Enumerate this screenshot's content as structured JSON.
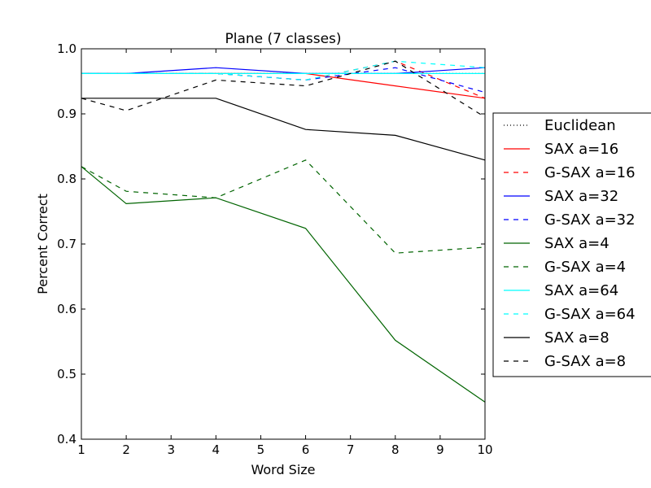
{
  "chart_data": {
    "type": "line",
    "title": "Plane (7 classes)",
    "xlabel": "Word Size",
    "ylabel": "Percent Correct",
    "xlim": [
      1,
      10
    ],
    "ylim": [
      0.4,
      1.0
    ],
    "xticks": [
      "1",
      "2",
      "3",
      "4",
      "5",
      "6",
      "7",
      "8",
      "9",
      "10"
    ],
    "yticks": [
      "0.4",
      "0.5",
      "0.6",
      "0.7",
      "0.8",
      "0.9",
      "1.0"
    ],
    "grid": false,
    "legend_position": "right",
    "x": [
      1,
      2,
      4,
      6,
      8,
      10
    ],
    "series": [
      {
        "name": "Euclidean",
        "color": "#000000",
        "style": "dotted",
        "values": [
          0.962,
          0.962,
          0.962,
          0.962,
          0.962,
          0.962
        ]
      },
      {
        "name": "SAX a=16",
        "color": "#ff0000",
        "style": "solid",
        "values": [
          0.962,
          0.962,
          0.962,
          0.962,
          0.943,
          0.924
        ]
      },
      {
        "name": "G-SAX a=16",
        "color": "#ff0000",
        "style": "dashed",
        "values": [
          0.962,
          0.962,
          0.962,
          0.952,
          0.981,
          0.924
        ]
      },
      {
        "name": "SAX a=32",
        "color": "#0000ff",
        "style": "solid",
        "values": [
          0.962,
          0.962,
          0.971,
          0.962,
          0.962,
          0.971
        ]
      },
      {
        "name": "G-SAX a=32",
        "color": "#0000ff",
        "style": "dashed",
        "values": [
          0.962,
          0.962,
          0.962,
          0.952,
          0.971,
          0.933
        ]
      },
      {
        "name": "SAX a=4",
        "color": "#006400",
        "style": "solid",
        "values": [
          0.819,
          0.762,
          0.771,
          0.724,
          0.552,
          0.457
        ]
      },
      {
        "name": "G-SAX a=4",
        "color": "#006400",
        "style": "dashed",
        "values": [
          0.819,
          0.781,
          0.771,
          0.829,
          0.686,
          0.695
        ]
      },
      {
        "name": "SAX a=64",
        "color": "#00ffff",
        "style": "solid",
        "values": [
          0.962,
          0.962,
          0.962,
          0.962,
          0.962,
          0.962
        ]
      },
      {
        "name": "G-SAX a=64",
        "color": "#00ffff",
        "style": "dashed",
        "values": [
          0.962,
          0.962,
          0.962,
          0.952,
          0.981,
          0.971
        ]
      },
      {
        "name": "SAX a=8",
        "color": "#000000",
        "style": "solid",
        "values": [
          0.924,
          0.924,
          0.924,
          0.876,
          0.867,
          0.829
        ]
      },
      {
        "name": "G-SAX a=8",
        "color": "#000000",
        "style": "dashed",
        "values": [
          0.924,
          0.905,
          0.952,
          0.943,
          0.981,
          0.895
        ]
      }
    ]
  }
}
